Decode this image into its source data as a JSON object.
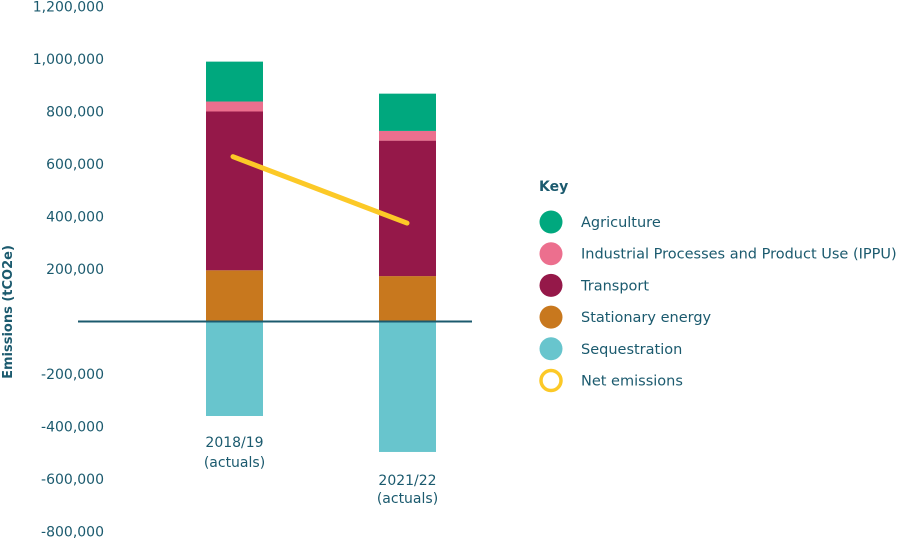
{
  "chart_data": {
    "type": "bar",
    "stacked": true,
    "ylabel": "Emissions (tCO2e)",
    "ylim": [
      -800000,
      1200000
    ],
    "yticks": [
      "1,200,000",
      "1,000,000",
      "800,000",
      "600,000",
      "400,000",
      "200,000",
      "-200,000",
      "-400,000",
      "-600,000",
      "-800,000"
    ],
    "ytick_values": [
      1200000,
      1000000,
      800000,
      600000,
      400000,
      200000,
      -200000,
      -400000,
      -600000,
      -800000
    ],
    "categories": [
      [
        "2018/19",
        "(actuals)"
      ],
      [
        "2021/22",
        "(actuals)"
      ]
    ],
    "series": [
      {
        "name": "Stationary energy",
        "color": "#c8781e",
        "values": [
          195000,
          173000
        ]
      },
      {
        "name": "Transport",
        "color": "#951849",
        "values": [
          605000,
          516000
        ]
      },
      {
        "name": "Industrial Processes and Product Use (IPPU)",
        "color": "#ec6f8e",
        "values": [
          38000,
          37000
        ]
      },
      {
        "name": "Agriculture",
        "color": "#00a87e",
        "values": [
          152000,
          142000
        ]
      },
      {
        "name": "Sequestration",
        "color": "#68c5cd",
        "values": [
          -360000,
          -497000
        ]
      }
    ],
    "net_emissions": {
      "name": "Net emissions",
      "color": "#fcc927",
      "values": [
        628000,
        375000
      ]
    },
    "legend": {
      "title": "Key",
      "placement": "right",
      "entries": [
        {
          "label": "Agriculture",
          "color": "#00a87e",
          "shape": "dot"
        },
        {
          "label": "Industrial Processes and Product Use (IPPU)",
          "color": "#ec6f8e",
          "shape": "dot"
        },
        {
          "label": "Transport",
          "color": "#951849",
          "shape": "dot"
        },
        {
          "label": "Stationary energy",
          "color": "#c8781e",
          "shape": "dot"
        },
        {
          "label": "Sequestration",
          "color": "#68c5cd",
          "shape": "dot"
        },
        {
          "label": "Net emissions",
          "color": "#fcc927",
          "shape": "ring"
        }
      ]
    },
    "grid": false,
    "zero_line_color": "#1b5a6e"
  }
}
